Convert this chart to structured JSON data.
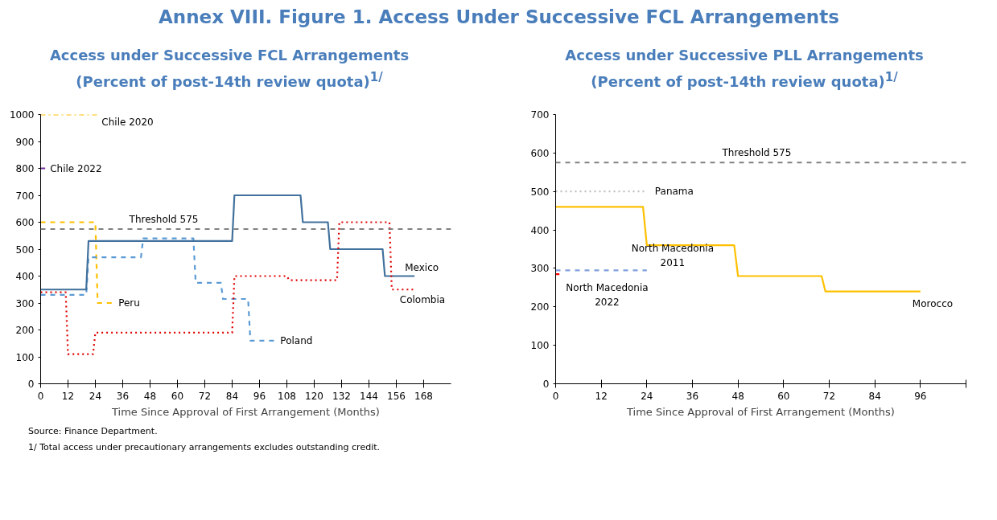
{
  "chart_data": [
    {
      "type": "line",
      "title": "Access under Successive FCL Arrangements",
      "subtitle": "(Percent of post-14th review quota)$^{1/}$",
      "xlabel": "Time Since Approval of First Arrangement (Months)",
      "xlim": [
        0,
        180
      ],
      "xticks": [
        0,
        12,
        24,
        36,
        48,
        60,
        72,
        84,
        96,
        108,
        120,
        132,
        144,
        156,
        168
      ],
      "ylim": [
        0,
        1000
      ],
      "yticks": [
        0,
        100,
        200,
        300,
        400,
        500,
        600,
        700,
        800,
        900,
        1000
      ],
      "ref_lines": [
        {
          "axis": "y",
          "value": 575,
          "label": "Threshold 575",
          "color": "#808080",
          "line_style": "dashed"
        }
      ],
      "annotations": [
        "Annex VIII. Figure 1. Access Under Successive FCL Arrangements",
        "Source: Finance Department.",
        "1/ Total access under precautionary arrangements excludes outstanding credit."
      ],
      "series": [
        {
          "name": "Chile 2020",
          "color": "#ffc000",
          "line_style": "dashdot",
          "x": [
            0,
            25
          ],
          "values": [
            1000,
            1000
          ]
        },
        {
          "name": "Chile 2022",
          "color": "#7030a0",
          "line_style": "solid",
          "x": [
            0,
            2
          ],
          "values": [
            800,
            800
          ]
        },
        {
          "name": "Peru",
          "color": "#ffc000",
          "line_style": "dashed",
          "x": [
            0,
            24,
            25,
            32
          ],
          "values": [
            600,
            600,
            300,
            300
          ]
        },
        {
          "name": "Poland",
          "color": "#5b9bd5",
          "line_style": "dashed",
          "x": [
            0,
            20,
            21,
            44,
            45,
            67,
            68,
            79,
            80,
            91,
            92,
            103
          ],
          "values": [
            330,
            330,
            470,
            470,
            540,
            540,
            375,
            375,
            315,
            315,
            160,
            160
          ]
        },
        {
          "name": "Mexico",
          "color": "#41719c",
          "line_style": "solid",
          "x": [
            0,
            20,
            21,
            84,
            85,
            114,
            115,
            126,
            127,
            150,
            151,
            164
          ],
          "values": [
            350,
            350,
            530,
            530,
            700,
            700,
            600,
            600,
            500,
            500,
            400,
            400
          ]
        },
        {
          "name": "Colombia",
          "color": "#e00000",
          "line_style": "dotted",
          "x": [
            0,
            11,
            12,
            23,
            24,
            84,
            85,
            108,
            109,
            130,
            131,
            153,
            154,
            164
          ],
          "values": [
            340,
            340,
            110,
            110,
            190,
            190,
            400,
            400,
            385,
            385,
            600,
            600,
            350,
            350
          ]
        }
      ]
    },
    {
      "type": "line",
      "title": "Access under Successive PLL Arrangements",
      "subtitle": "(Percent of post-14th review quota)$^{1/}$",
      "xlabel": "Time Since Approval of First Arrangement (Months)",
      "xlim": [
        0,
        108
      ],
      "xticks": [
        0,
        12,
        24,
        36,
        48,
        60,
        72,
        84,
        96,
        {
          "value": 108,
          "label": null
        }
      ],
      "ylim": [
        0,
        700
      ],
      "yticks": [
        0,
        100,
        200,
        300,
        400,
        500,
        600,
        700
      ],
      "ref_lines": [
        {
          "axis": "y",
          "value": 575,
          "label": "Threshold 575",
          "color": "#808080",
          "line_style": "dashed"
        }
      ],
      "series": [
        {
          "name": "Panama",
          "color": "#bfbfbf",
          "line_style": "dotted",
          "x": [
            0,
            24
          ],
          "values": [
            500,
            500
          ]
        },
        {
          "name": "Morocco",
          "color": "#ffc000",
          "line_style": "solid",
          "x": [
            0,
            23,
            24,
            47,
            48,
            70,
            71,
            96
          ],
          "values": [
            460,
            460,
            360,
            360,
            280,
            280,
            240,
            240
          ]
        },
        {
          "name": "North Macedonia 2011",
          "color": "#7f9fdc",
          "line_style": "dashed",
          "x": [
            0,
            24
          ],
          "values": [
            295,
            295
          ]
        },
        {
          "name": "North Macedonia 2022",
          "color": "#ff0000",
          "line_style": "solid",
          "x": [
            0,
            1
          ],
          "values": [
            285,
            285
          ]
        }
      ]
    }
  ]
}
